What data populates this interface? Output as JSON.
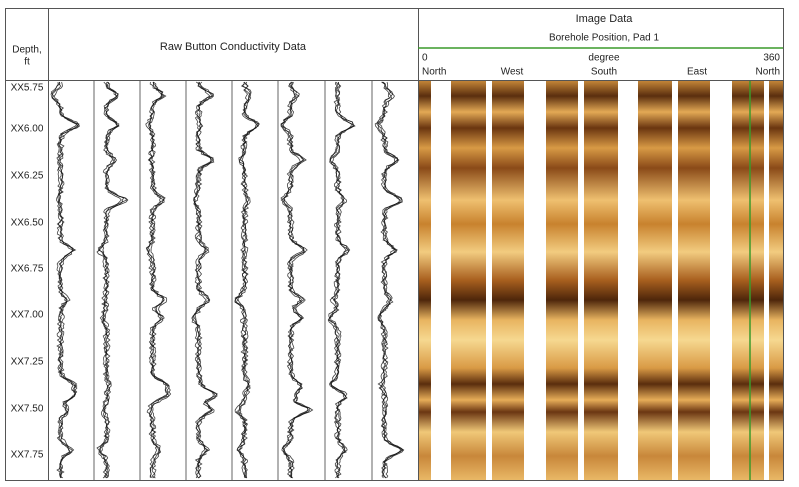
{
  "depth_header": [
    "Depth,",
    "ft"
  ],
  "raw_panel": {
    "title": "Raw Button Conductivity Data"
  },
  "image_panel": {
    "title": "Image Data",
    "subtitle": "Borehole Position, Pad 1",
    "scale": {
      "min": "0",
      "unit": "degree",
      "max": "360"
    },
    "directions": [
      "North",
      "West",
      "South",
      "East",
      "North"
    ]
  },
  "depth_labels": [
    "XX5.75",
    "XX6.00",
    "XX6.25",
    "XX6.50",
    "XX6.75",
    "XX7.00",
    "XX7.25",
    "XX7.50",
    "XX7.75"
  ]
}
